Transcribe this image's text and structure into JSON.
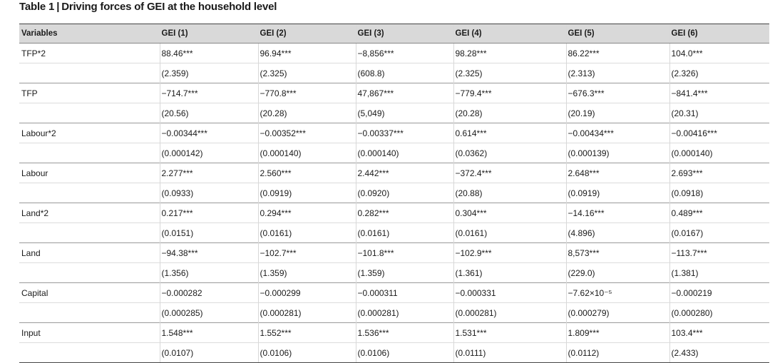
{
  "caption": {
    "label": "Table 1",
    "separator": "|",
    "title": "Driving forces of GEI at the household level"
  },
  "table": {
    "headers": [
      "Variables",
      "GEI (1)",
      "GEI (2)",
      "GEI (3)",
      "GEI (4)",
      "GEI (5)",
      "GEI (6)"
    ],
    "rows": [
      {
        "variable": "TFP*2",
        "coefficients": [
          "88.46***",
          "96.94***",
          "−8,856***",
          "98.28***",
          "86.22***",
          "104.0***"
        ],
        "standard_errors": [
          "(2.359)",
          "(2.325)",
          "(608.8)",
          "(2.325)",
          "(2.313)",
          "(2.326)"
        ]
      },
      {
        "variable": "TFP",
        "coefficients": [
          "−714.7***",
          "−770.8***",
          "47,867***",
          "−779.4***",
          "−676.3***",
          "−841.4***"
        ],
        "standard_errors": [
          "(20.56)",
          "(20.28)",
          "(5,049)",
          "(20.28)",
          "(20.19)",
          "(20.31)"
        ]
      },
      {
        "variable": "Labour*2",
        "coefficients": [
          "−0.00344***",
          "−0.00352***",
          "−0.00337***",
          "0.614***",
          "−0.00434***",
          "−0.00416***"
        ],
        "standard_errors": [
          "(0.000142)",
          "(0.000140)",
          "(0.000140)",
          "(0.0362)",
          "(0.000139)",
          "(0.000140)"
        ]
      },
      {
        "variable": "Labour",
        "coefficients": [
          "2.277***",
          "2.560***",
          "2.442***",
          "−372.4***",
          "2.648***",
          "2.693***"
        ],
        "standard_errors": [
          "(0.0933)",
          "(0.0919)",
          "(0.0920)",
          "(20.88)",
          "(0.0919)",
          "(0.0918)"
        ]
      },
      {
        "variable": "Land*2",
        "coefficients": [
          "0.217***",
          "0.294***",
          "0.282***",
          "0.304***",
          "−14.16***",
          "0.489***"
        ],
        "standard_errors": [
          "(0.0151)",
          "(0.0161)",
          "(0.0161)",
          "(0.0161)",
          "(4.896)",
          "(0.0167)"
        ]
      },
      {
        "variable": "Land",
        "coefficients": [
          "−94.38***",
          "−102.7***",
          "−101.8***",
          "−102.9***",
          "8,573***",
          "−113.7***"
        ],
        "standard_errors": [
          "(1.356)",
          "(1.359)",
          "(1.359)",
          "(1.361)",
          "(229.0)",
          "(1.381)"
        ]
      },
      {
        "variable": "Capital",
        "coefficients": [
          "−0.000282",
          "−0.000299",
          "−0.000311",
          "−0.000331",
          "−7.62×10⁻⁵",
          "−0.000219"
        ],
        "standard_errors": [
          "(0.000285)",
          "(0.000281)",
          "(0.000281)",
          "(0.000281)",
          "(0.000279)",
          "(0.000280)"
        ]
      },
      {
        "variable": "Input",
        "coefficients": [
          "1.548***",
          "1.552***",
          "1.536***",
          "1.531***",
          "1.809***",
          "103.4***"
        ],
        "standard_errors": [
          "(0.0107)",
          "(0.0106)",
          "(0.0106)",
          "(0.0111)",
          "(0.0112)",
          "(2.433)"
        ]
      }
    ]
  }
}
